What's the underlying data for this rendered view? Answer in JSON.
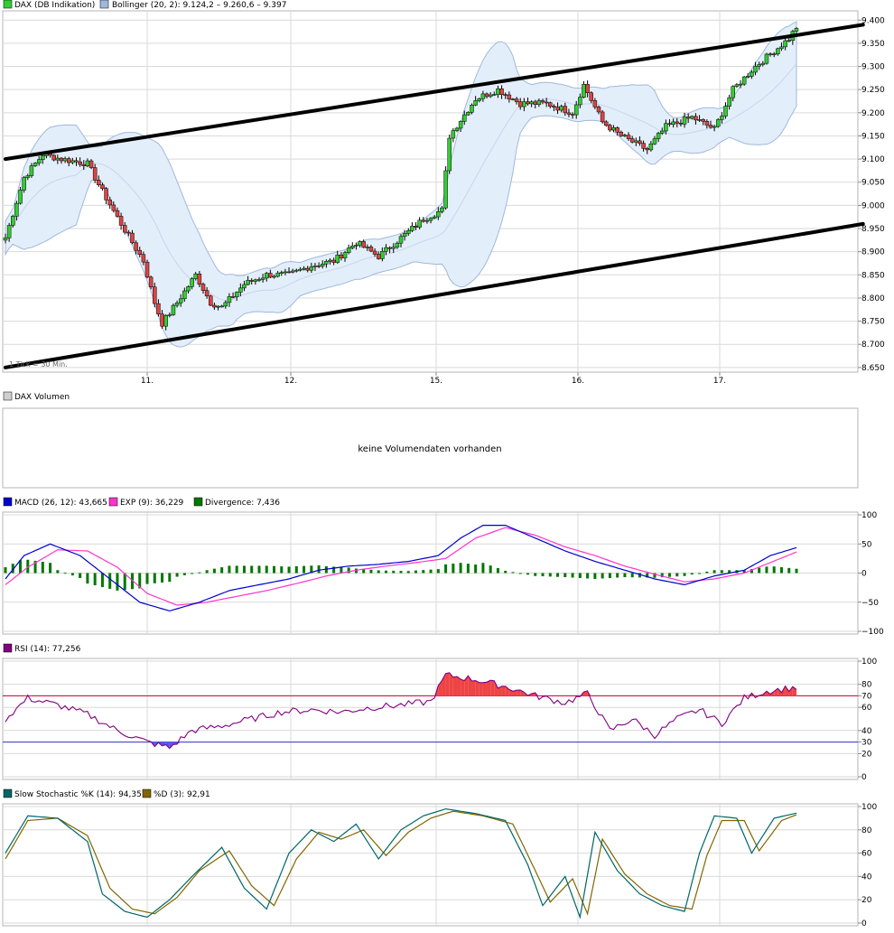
{
  "colors": {
    "up": "#33cc33",
    "down": "#dd4444",
    "band_fill": "#e3eefb",
    "band_line": "#9fb8db",
    "grid": "#d9d9d9",
    "frame": "#b5b5b5",
    "trendline": "#000000",
    "macd": "#0000cc",
    "signal": "#ff33cc",
    "divergence": "#007700",
    "rsi": "#800080",
    "rsi_fill_high": "#ee4444",
    "rsi_fill_low": "#5555ee",
    "ref70": "#cc0033",
    "ref30": "#3333cc",
    "stoch_k": "#006666",
    "stoch_d": "#806600"
  },
  "price_panel": {
    "legend_main": "DAX (DB Indikation)",
    "legend_bb": "Bollinger (20, 2): 9.124,2 – 9.260,6 – 9.397",
    "note": "1 Tick = 30 Min.",
    "x_ticks": [
      "11.",
      "12.",
      "15.",
      "16.",
      "17."
    ],
    "y_ticks": [
      "9.400",
      "9.350",
      "9.300",
      "9.250",
      "9.200",
      "9.150",
      "9.100",
      "9.050",
      "9.000",
      "8.950",
      "8.900",
      "8.850",
      "8.800",
      "8.750",
      "8.700",
      "8.650"
    ]
  },
  "volume_panel": {
    "legend": "DAX Volumen",
    "message": "keine Volumendaten vorhanden"
  },
  "macd_panel": {
    "legend_macd": "MACD (26, 12): 43,665",
    "legend_exp": "EXP (9): 36,229",
    "legend_div": "Divergence: 7,436",
    "y_ticks": [
      "100",
      "50",
      "0",
      "−50",
      "−100"
    ]
  },
  "rsi_panel": {
    "legend": "RSI (14): 77,256",
    "y_ticks": [
      "100",
      "80",
      "70",
      "60",
      "40",
      "30",
      "20",
      "0"
    ]
  },
  "stoch_panel": {
    "legend_k": "Slow Stochastic %K (14): 94,357",
    "legend_d": "%D (3): 92,91",
    "y_ticks": [
      "100",
      "80",
      "60",
      "40",
      "20",
      "0"
    ]
  },
  "chart_data": [
    {
      "type": "candlestick",
      "x_labels": [
        "11.",
        "12.",
        "15.",
        "16.",
        "17."
      ],
      "ylim": [
        8640,
        9420
      ],
      "price_path": [
        [
          0,
          8930
        ],
        [
          5,
          9060
        ],
        [
          10,
          9110
        ],
        [
          15,
          9100
        ],
        [
          22,
          9090
        ],
        [
          26,
          9030
        ],
        [
          31,
          8960
        ],
        [
          37,
          8880
        ],
        [
          40,
          8790
        ],
        [
          42,
          8745
        ],
        [
          46,
          8790
        ],
        [
          51,
          8850
        ],
        [
          55,
          8790
        ],
        [
          58,
          8780
        ],
        [
          64,
          8830
        ],
        [
          70,
          8850
        ],
        [
          76,
          8850
        ],
        [
          82,
          8870
        ],
        [
          88,
          8880
        ],
        [
          94,
          8920
        ],
        [
          100,
          8890
        ],
        [
          106,
          8930
        ],
        [
          112,
          8970
        ],
        [
          117,
          8990
        ],
        [
          119,
          9150
        ],
        [
          126,
          9230
        ],
        [
          132,
          9250
        ],
        [
          138,
          9220
        ],
        [
          145,
          9220
        ],
        [
          152,
          9200
        ],
        [
          155,
          9260
        ],
        [
          160,
          9180
        ],
        [
          165,
          9150
        ],
        [
          172,
          9120
        ],
        [
          177,
          9170
        ],
        [
          184,
          9190
        ],
        [
          190,
          9165
        ],
        [
          195,
          9250
        ],
        [
          201,
          9300
        ],
        [
          207,
          9340
        ],
        [
          210,
          9360
        ],
        [
          212,
          9385
        ]
      ],
      "trendlines": [
        {
          "from": [
            0,
            9100
          ],
          "to": [
            225,
            9390
          ]
        },
        {
          "from": [
            0,
            8650
          ],
          "to": [
            225,
            8960
          ]
        }
      ],
      "bollinger": {
        "lower": 9124.2,
        "middle": 9260.6,
        "upper": 9397
      }
    },
    {
      "type": "line",
      "series": [
        {
          "name": "MACD (26, 12)",
          "last": 43.665,
          "values": [
            [
              0,
              -10
            ],
            [
              5,
              30
            ],
            [
              12,
              50
            ],
            [
              20,
              30
            ],
            [
              28,
              -10
            ],
            [
              36,
              -50
            ],
            [
              44,
              -65
            ],
            [
              52,
              -50
            ],
            [
              60,
              -30
            ],
            [
              68,
              -20
            ],
            [
              76,
              -10
            ],
            [
              84,
              5
            ],
            [
              92,
              12
            ],
            [
              100,
              15
            ],
            [
              108,
              20
            ],
            [
              116,
              30
            ],
            [
              122,
              60
            ],
            [
              128,
              82
            ],
            [
              134,
              82
            ],
            [
              142,
              60
            ],
            [
              150,
              38
            ],
            [
              158,
              20
            ],
            [
              166,
              5
            ],
            [
              174,
              -10
            ],
            [
              182,
              -20
            ],
            [
              190,
              -5
            ],
            [
              198,
              5
            ],
            [
              205,
              30
            ],
            [
              212,
              43.665
            ]
          ]
        },
        {
          "name": "EXP (9)",
          "last": 36.229,
          "values": [
            [
              0,
              -20
            ],
            [
              6,
              10
            ],
            [
              14,
              40
            ],
            [
              22,
              38
            ],
            [
              30,
              10
            ],
            [
              38,
              -35
            ],
            [
              46,
              -55
            ],
            [
              54,
              -50
            ],
            [
              62,
              -40
            ],
            [
              70,
              -30
            ],
            [
              78,
              -18
            ],
            [
              86,
              -5
            ],
            [
              94,
              5
            ],
            [
              102,
              12
            ],
            [
              110,
              18
            ],
            [
              118,
              25
            ],
            [
              126,
              60
            ],
            [
              134,
              78
            ],
            [
              142,
              65
            ],
            [
              150,
              45
            ],
            [
              158,
              30
            ],
            [
              166,
              12
            ],
            [
              174,
              -2
            ],
            [
              182,
              -15
            ],
            [
              190,
              -10
            ],
            [
              198,
              0
            ],
            [
              205,
              18
            ],
            [
              212,
              36.229
            ]
          ]
        },
        {
          "name": "Divergence",
          "last": 7.436
        }
      ],
      "ylim": [
        -100,
        100
      ]
    },
    {
      "type": "line",
      "series": [
        {
          "name": "RSI (14)",
          "last": 77.256,
          "values": [
            [
              0,
              50
            ],
            [
              6,
              68
            ],
            [
              14,
              62
            ],
            [
              22,
              54
            ],
            [
              30,
              40
            ],
            [
              38,
              30
            ],
            [
              44,
              25
            ],
            [
              50,
              40
            ],
            [
              58,
              44
            ],
            [
              66,
              50
            ],
            [
              74,
              56
            ],
            [
              82,
              58
            ],
            [
              90,
              56
            ],
            [
              98,
              60
            ],
            [
              106,
              62
            ],
            [
              114,
              65
            ],
            [
              118,
              88
            ],
            [
              126,
              84
            ],
            [
              134,
              78
            ],
            [
              142,
              70
            ],
            [
              150,
              64
            ],
            [
              156,
              72
            ],
            [
              162,
              40
            ],
            [
              168,
              50
            ],
            [
              174,
              36
            ],
            [
              180,
              50
            ],
            [
              186,
              58
            ],
            [
              192,
              46
            ],
            [
              198,
              68
            ],
            [
              204,
              74
            ],
            [
              212,
              77.256
            ]
          ]
        }
      ],
      "reference_lines": [
        70,
        30
      ],
      "ylim": [
        0,
        100
      ]
    },
    {
      "type": "line",
      "series": [
        {
          "name": "Slow Stochastic %K (14)",
          "last": 94.357,
          "values": [
            [
              0,
              60
            ],
            [
              6,
              92
            ],
            [
              14,
              90
            ],
            [
              22,
              70
            ],
            [
              26,
              25
            ],
            [
              32,
              10
            ],
            [
              38,
              5
            ],
            [
              44,
              20
            ],
            [
              50,
              40
            ],
            [
              58,
              65
            ],
            [
              64,
              30
            ],
            [
              70,
              12
            ],
            [
              76,
              60
            ],
            [
              82,
              80
            ],
            [
              88,
              70
            ],
            [
              94,
              85
            ],
            [
              100,
              55
            ],
            [
              106,
              80
            ],
            [
              112,
              92
            ],
            [
              118,
              98
            ],
            [
              126,
              94
            ],
            [
              134,
              88
            ],
            [
              140,
              50
            ],
            [
              144,
              15
            ],
            [
              150,
              40
            ],
            [
              154,
              5
            ],
            [
              158,
              78
            ],
            [
              164,
              45
            ],
            [
              170,
              25
            ],
            [
              176,
              15
            ],
            [
              182,
              10
            ],
            [
              186,
              60
            ],
            [
              190,
              92
            ],
            [
              196,
              90
            ],
            [
              200,
              60
            ],
            [
              206,
              90
            ],
            [
              212,
              94.357
            ]
          ]
        },
        {
          "name": "%D (3)",
          "last": 92.91,
          "values": [
            [
              0,
              55
            ],
            [
              6,
              88
            ],
            [
              14,
              90
            ],
            [
              22,
              75
            ],
            [
              28,
              30
            ],
            [
              34,
              12
            ],
            [
              40,
              8
            ],
            [
              46,
              22
            ],
            [
              52,
              45
            ],
            [
              60,
              62
            ],
            [
              66,
              32
            ],
            [
              72,
              15
            ],
            [
              78,
              55
            ],
            [
              84,
              78
            ],
            [
              90,
              72
            ],
            [
              96,
              80
            ],
            [
              102,
              58
            ],
            [
              108,
              78
            ],
            [
              114,
              90
            ],
            [
              120,
              96
            ],
            [
              128,
              92
            ],
            [
              136,
              85
            ],
            [
              142,
              45
            ],
            [
              146,
              18
            ],
            [
              152,
              38
            ],
            [
              156,
              8
            ],
            [
              160,
              72
            ],
            [
              166,
              42
            ],
            [
              172,
              25
            ],
            [
              178,
              15
            ],
            [
              184,
              12
            ],
            [
              188,
              58
            ],
            [
              192,
              88
            ],
            [
              198,
              88
            ],
            [
              202,
              62
            ],
            [
              208,
              88
            ],
            [
              212,
              92.91
            ]
          ]
        }
      ],
      "ylim": [
        0,
        100
      ]
    }
  ]
}
